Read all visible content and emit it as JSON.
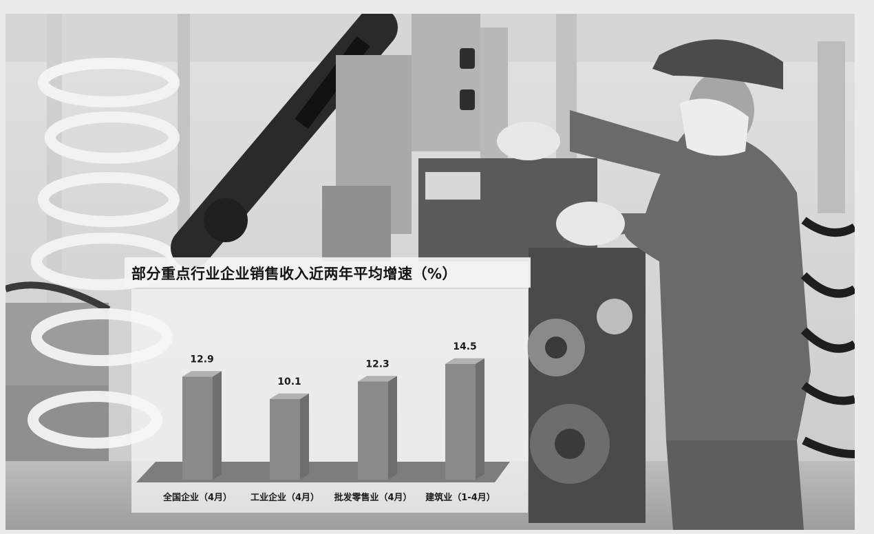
{
  "colors": {
    "page_background": "#ecebec",
    "bar_front": "#8a8a8a",
    "bar_side": "#6e6e6e",
    "bar_top": "#b2b2b2",
    "floor": "#7d7d7d",
    "title_band": "#f4f4f4"
  },
  "chart_data": {
    "type": "bar",
    "style": "3d-column",
    "title": "部分重点行业企业销售收入近两年平均增速（%）",
    "categories": [
      "全国企业（4月）",
      "工业企业（4月）",
      "批发零售业（4月）",
      "建筑业（1-4月）"
    ],
    "values": [
      12.9,
      10.1,
      12.3,
      14.5
    ],
    "value_labels": [
      "12.9",
      "10.1",
      "12.3",
      "14.5"
    ],
    "unit": "%",
    "ylim": [
      0,
      16
    ],
    "grid": false,
    "legend": "none"
  }
}
